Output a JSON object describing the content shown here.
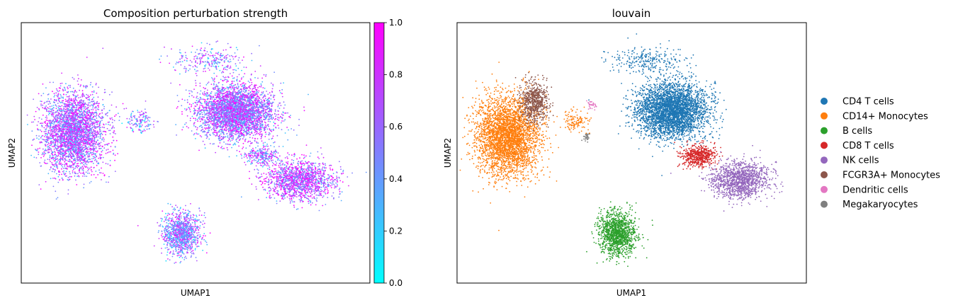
{
  "chart_data": [
    {
      "type": "scatter",
      "title": "Composition perturbation strength",
      "xlabel": "UMAP1",
      "ylabel": "UMAP2",
      "color_scale": {
        "name": "cool",
        "colors": [
          "#00ffff",
          "#ff00ff"
        ],
        "range": [
          0.0,
          1.0
        ],
        "ticks": [
          "0.0",
          "0.2",
          "0.4",
          "0.6",
          "0.8",
          "1.0"
        ]
      },
      "clusters": [
        {
          "name": "left cluster",
          "center": [
            -7.0,
            4.0
          ],
          "spread": [
            1.6,
            2.6
          ],
          "points": 3200,
          "value_mean": 0.66
        },
        {
          "name": "central cluster",
          "center": [
            2.3,
            5.5
          ],
          "spread": [
            2.0,
            1.8
          ],
          "points": 3600,
          "value_mean": 0.64
        },
        {
          "name": "lower cluster",
          "center": [
            -0.8,
            -3.4
          ],
          "spread": [
            0.95,
            1.4
          ],
          "points": 1100,
          "value_mean": 0.55
        },
        {
          "name": "right cluster",
          "center": [
            6.0,
            0.5
          ],
          "spread": [
            1.8,
            1.3
          ],
          "points": 1500,
          "value_mean": 0.72
        },
        {
          "name": "bridge",
          "center": [
            3.8,
            2.3
          ],
          "spread": [
            0.9,
            0.6
          ],
          "points": 260,
          "value_mean": 0.6
        },
        {
          "name": "upper spikes",
          "center": [
            0.9,
            9.3
          ],
          "spread": [
            2.0,
            0.9
          ],
          "points": 260,
          "value_mean": 0.55
        },
        {
          "name": "scattered",
          "center": [
            -3.2,
            4.8
          ],
          "spread": [
            0.7,
            0.7
          ],
          "points": 140,
          "value_mean": 0.5
        }
      ],
      "xlim": [
        -10,
        10
      ],
      "ylim": [
        -7,
        12
      ],
      "xticks": [],
      "yticks": [],
      "grid": false
    },
    {
      "type": "scatter",
      "title": "louvain",
      "xlabel": "UMAP1",
      "ylabel": "UMAP2",
      "legend": {
        "placement": "right, outside plot",
        "entries": [
          {
            "label": "CD4 T cells",
            "color": "#1f77b4"
          },
          {
            "label": "CD14+ Monocytes",
            "color": "#ff7f0e"
          },
          {
            "label": "B cells",
            "color": "#2ca02c"
          },
          {
            "label": "CD8 T cells",
            "color": "#d62728"
          },
          {
            "label": "NK cells",
            "color": "#9467bd"
          },
          {
            "label": "FCGR3A+ Monocytes",
            "color": "#8c564b"
          },
          {
            "label": "Dendritic cells",
            "color": "#e377c2"
          },
          {
            "label": "Megakaryocytes",
            "color": "#7f7f7f"
          }
        ]
      },
      "clusters": [
        {
          "label": "CD14+ Monocytes",
          "center": [
            -7.1,
            3.7
          ],
          "spread": [
            1.6,
            2.6
          ],
          "points": 3400
        },
        {
          "label": "FCGR3A+ Monocytes",
          "center": [
            -5.6,
            6.2
          ],
          "spread": [
            0.7,
            1.3
          ],
          "points": 650
        },
        {
          "label": "CD4 T cells",
          "center": [
            2.3,
            5.6
          ],
          "spread": [
            1.8,
            1.8
          ],
          "points": 3600
        },
        {
          "label": "B cells",
          "center": [
            -0.8,
            -3.4
          ],
          "spread": [
            0.95,
            1.4
          ],
          "points": 1300
        },
        {
          "label": "CD8 T cells",
          "center": [
            3.8,
            2.3
          ],
          "spread": [
            0.9,
            0.7
          ],
          "points": 550
        },
        {
          "label": "NK cells",
          "center": [
            6.2,
            0.5
          ],
          "spread": [
            1.5,
            1.2
          ],
          "points": 1300
        },
        {
          "label": "Dendritic cells",
          "center": [
            -2.3,
            6.0
          ],
          "spread": [
            0.3,
            0.3
          ],
          "points": 30
        },
        {
          "label": "Megakaryocytes",
          "center": [
            -2.6,
            3.7
          ],
          "spread": [
            0.15,
            0.3
          ],
          "points": 35
        },
        {
          "label": "CD4 T cells",
          "center": [
            0.9,
            9.3
          ],
          "spread": [
            2.0,
            0.9
          ],
          "points": 260
        },
        {
          "label": "CD14+ Monocytes",
          "center": [
            -3.2,
            4.8
          ],
          "spread": [
            0.7,
            0.7
          ],
          "points": 120
        }
      ],
      "xlim": [
        -10,
        10
      ],
      "ylim": [
        -7,
        12
      ],
      "xticks": [],
      "yticks": [],
      "grid": false
    }
  ]
}
